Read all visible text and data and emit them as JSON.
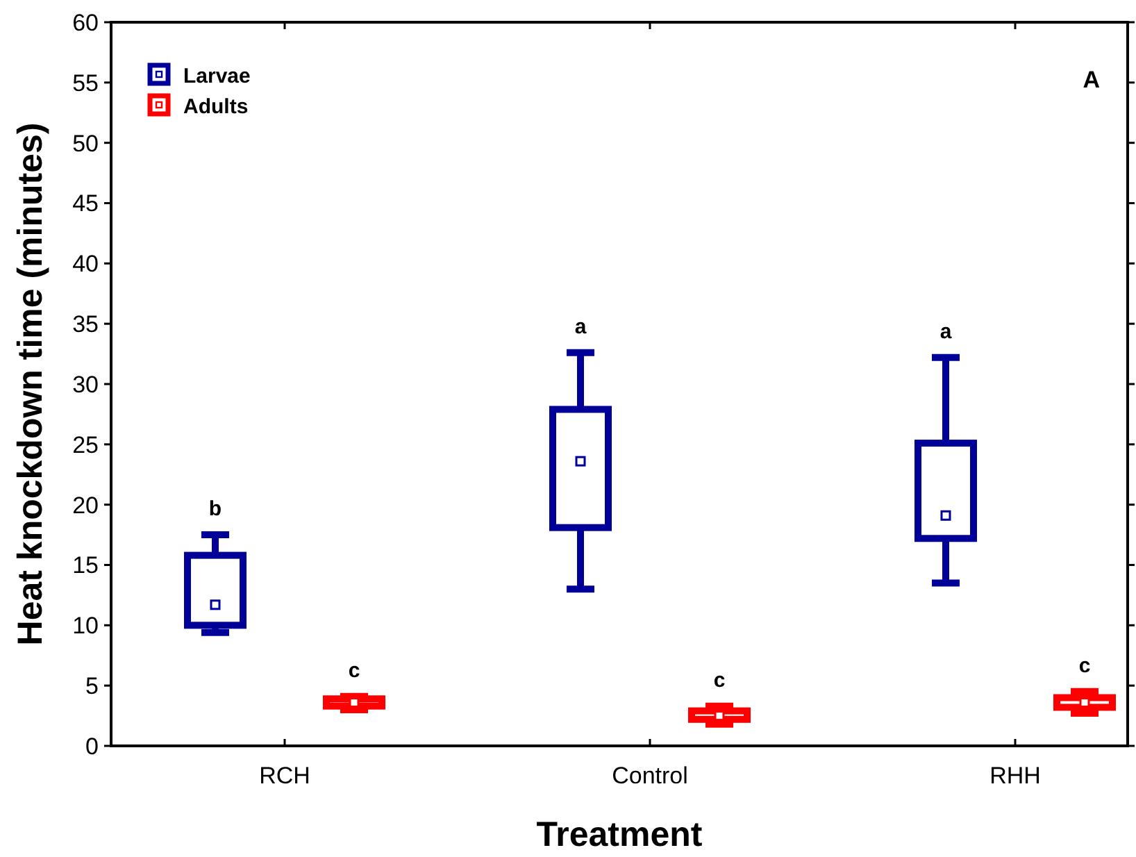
{
  "chart_data": {
    "type": "box",
    "xlabel": "Treatment",
    "ylabel": "Heat knockdown time (minutes)",
    "categories": [
      "RCH",
      "Control",
      "RHH"
    ],
    "ylim": [
      0,
      60
    ],
    "yticks": [
      0,
      5,
      10,
      15,
      20,
      25,
      30,
      35,
      40,
      45,
      50,
      55,
      60
    ],
    "legend": "top left",
    "grid": false,
    "series": [
      {
        "name": "Larvae",
        "color": "#000099",
        "boxes": [
          {
            "low": 9.4,
            "q1": 10.0,
            "median": 11.7,
            "q3": 15.8,
            "high": 17.5
          },
          {
            "low": 13.0,
            "q1": 18.1,
            "median": 23.6,
            "q3": 27.9,
            "high": 32.6
          },
          {
            "low": 13.5,
            "q1": 17.2,
            "median": 19.1,
            "q3": 25.1,
            "high": 32.2
          }
        ]
      },
      {
        "name": "Adults",
        "color": "#ff0000",
        "boxes": [
          {
            "low": 3.0,
            "q1": 3.3,
            "median": 3.6,
            "q3": 3.9,
            "high": 4.1
          },
          {
            "low": 1.8,
            "q1": 2.2,
            "median": 2.5,
            "q3": 2.9,
            "high": 3.3
          },
          {
            "low": 2.7,
            "q1": 3.2,
            "median": 3.6,
            "q3": 4.0,
            "high": 4.5
          }
        ]
      }
    ],
    "annotations": [
      "b",
      "a",
      "a",
      "c",
      "c",
      "c",
      "A"
    ]
  }
}
